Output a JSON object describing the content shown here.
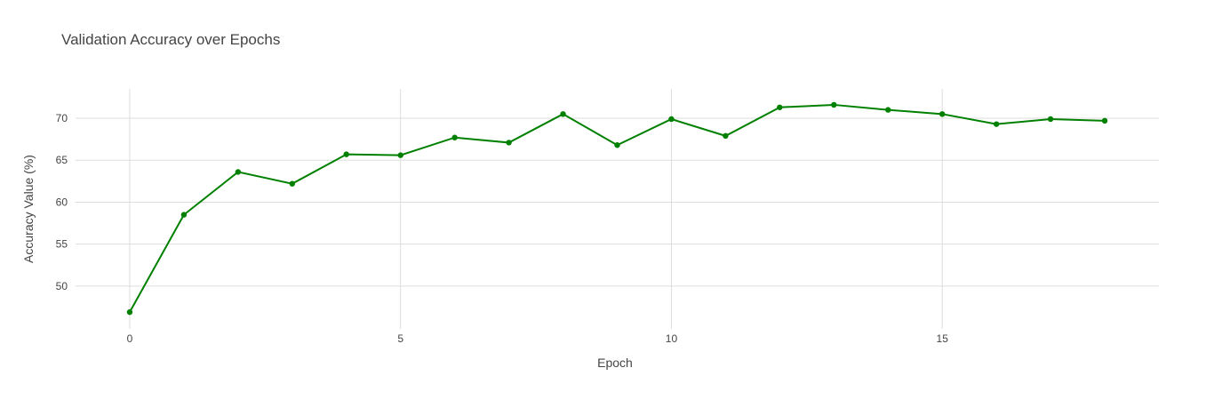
{
  "chart_data": {
    "type": "line",
    "title": "Validation Accuracy over Epochs",
    "xlabel": "Epoch",
    "ylabel": "Accuracy Value (%)",
    "x": [
      0,
      1,
      2,
      3,
      4,
      5,
      6,
      7,
      8,
      9,
      10,
      11,
      12,
      13,
      14,
      15,
      16,
      17,
      18
    ],
    "series": [
      {
        "values": [
          46.9,
          58.5,
          63.6,
          62.2,
          65.7,
          65.6,
          67.7,
          67.1,
          70.5,
          66.8,
          69.9,
          67.9,
          71.3,
          71.6,
          71.0,
          70.5,
          69.3,
          69.9,
          69.7
        ],
        "color": "#008000",
        "mode": "lines+markers"
      }
    ],
    "xticks": [
      0,
      5,
      10,
      15
    ],
    "yticks": [
      50,
      55,
      60,
      65,
      70
    ],
    "xlim": [
      -1.0,
      19.0
    ],
    "ylim": [
      44.9,
      73.5
    ],
    "grid": true
  }
}
